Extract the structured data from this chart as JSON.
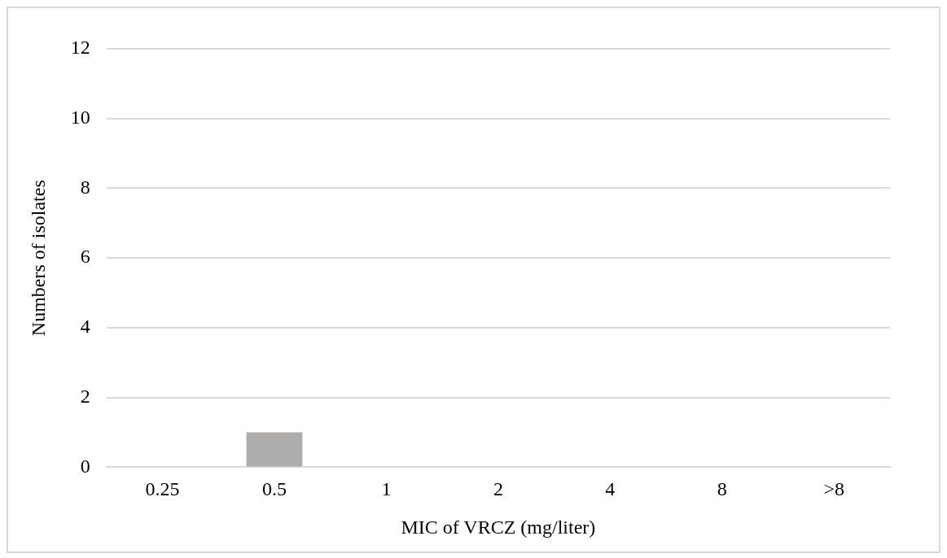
{
  "chart_data": {
    "type": "bar",
    "xlabel": "MIC of VRCZ (mg/liter)",
    "ylabel": "Numbers of isolates",
    "categories": [
      "0.25",
      "0.5",
      "1",
      "2",
      "4",
      "8",
      ">8"
    ],
    "values": [
      0,
      1,
      0,
      0,
      0,
      0,
      0
    ],
    "color": "#afadab",
    "ylim": [
      0,
      12
    ],
    "yticks": [
      0,
      2,
      4,
      6,
      8,
      10,
      12
    ],
    "grid": "y",
    "legend": false
  }
}
